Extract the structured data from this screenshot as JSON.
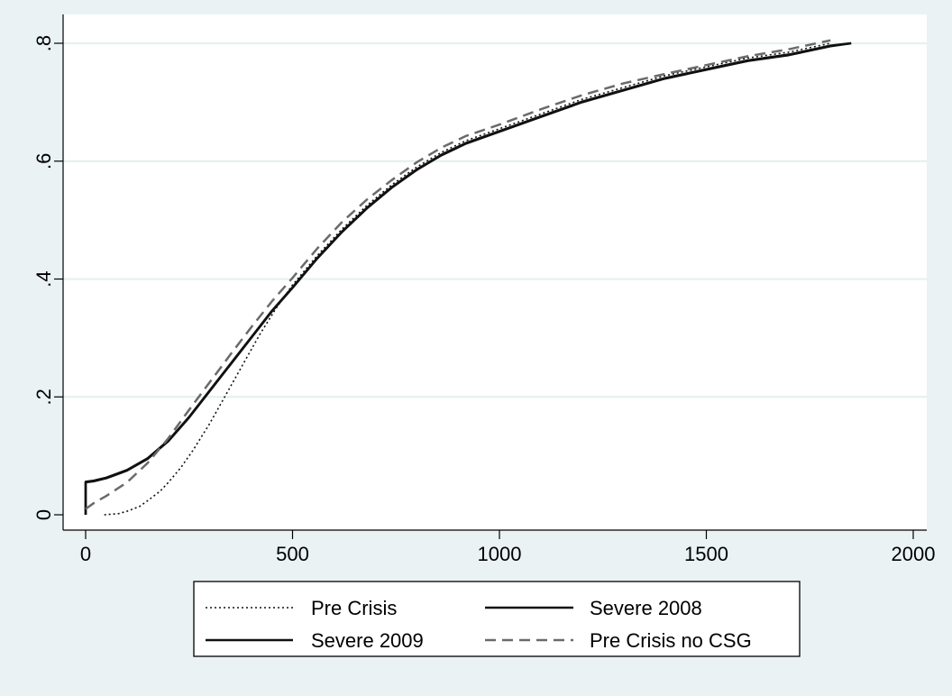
{
  "chart_data": {
    "type": "line",
    "xlim": [
      0,
      2000
    ],
    "ylim": [
      0,
      0.8
    ],
    "x_ticks": [
      0,
      500,
      1000,
      1500,
      2000
    ],
    "x_tick_labels": [
      "0",
      "500",
      "1000",
      "1500",
      "2000"
    ],
    "y_ticks": [
      0,
      0.2,
      0.4,
      0.6,
      0.8
    ],
    "y_tick_labels": [
      "0",
      ".2",
      ".4",
      ".6",
      ".8"
    ],
    "grid": true,
    "legend_placement": "bottom",
    "colors": {
      "background": "#eaf2f3",
      "plot_background": "#ffffff",
      "grid": "#e4eff0",
      "axis": "#000000",
      "pre_crisis": "#111111",
      "severe_2008": "#111111",
      "severe_2009": "#111111",
      "pre_crisis_no_csg": "#6a6a6a"
    },
    "series": [
      {
        "name": "Pre Crisis",
        "style": "dotted",
        "x": [
          45,
          80,
          100,
          130,
          150,
          180,
          200,
          230,
          260,
          300,
          340,
          380,
          420,
          460,
          500,
          560,
          620,
          680,
          740,
          800,
          860,
          920,
          1000,
          1100,
          1200,
          1300,
          1400,
          1500,
          1600,
          1700,
          1800
        ],
        "y": [
          0.0,
          0.002,
          0.006,
          0.014,
          0.024,
          0.04,
          0.055,
          0.08,
          0.11,
          0.155,
          0.205,
          0.255,
          0.305,
          0.35,
          0.39,
          0.44,
          0.485,
          0.525,
          0.56,
          0.59,
          0.615,
          0.635,
          0.655,
          0.68,
          0.705,
          0.725,
          0.745,
          0.76,
          0.775,
          0.785,
          0.8
        ]
      },
      {
        "name": "Severe 2008",
        "style": "solid",
        "x": [
          0,
          0,
          20,
          50,
          100,
          150,
          200,
          250,
          300,
          350,
          400,
          450,
          500,
          560,
          620,
          680,
          740,
          800,
          860,
          920,
          1000,
          1100,
          1200,
          1300,
          1400,
          1500,
          1600,
          1700,
          1800,
          1850
        ],
        "y": [
          0.0,
          0.055,
          0.057,
          0.062,
          0.075,
          0.095,
          0.125,
          0.165,
          0.21,
          0.255,
          0.3,
          0.345,
          0.385,
          0.435,
          0.48,
          0.52,
          0.555,
          0.585,
          0.61,
          0.63,
          0.65,
          0.675,
          0.7,
          0.72,
          0.74,
          0.755,
          0.77,
          0.78,
          0.795,
          0.8
        ]
      },
      {
        "name": "Severe 2009",
        "style": "solid",
        "x": [
          0,
          0,
          20,
          50,
          100,
          150,
          200,
          250,
          300,
          350,
          400,
          450,
          500,
          560,
          620,
          680,
          740,
          800,
          860,
          920,
          1000,
          1100,
          1200,
          1300,
          1400,
          1500,
          1600,
          1700,
          1800,
          1850
        ],
        "y": [
          0.0,
          0.056,
          0.058,
          0.063,
          0.076,
          0.096,
          0.126,
          0.166,
          0.211,
          0.256,
          0.301,
          0.346,
          0.386,
          0.436,
          0.481,
          0.521,
          0.556,
          0.586,
          0.611,
          0.631,
          0.651,
          0.676,
          0.701,
          0.721,
          0.741,
          0.756,
          0.771,
          0.781,
          0.796,
          0.8
        ]
      },
      {
        "name": "Pre Crisis no CSG",
        "style": "dashed",
        "x": [
          0,
          20,
          50,
          100,
          150,
          200,
          250,
          300,
          350,
          400,
          450,
          500,
          560,
          620,
          680,
          740,
          800,
          860,
          920,
          1000,
          1100,
          1200,
          1300,
          1400,
          1500,
          1600,
          1700,
          1800
        ],
        "y": [
          0.01,
          0.02,
          0.032,
          0.055,
          0.088,
          0.13,
          0.178,
          0.225,
          0.272,
          0.318,
          0.362,
          0.402,
          0.452,
          0.497,
          0.535,
          0.568,
          0.598,
          0.623,
          0.643,
          0.662,
          0.688,
          0.712,
          0.732,
          0.748,
          0.763,
          0.778,
          0.79,
          0.805
        ]
      }
    ]
  }
}
